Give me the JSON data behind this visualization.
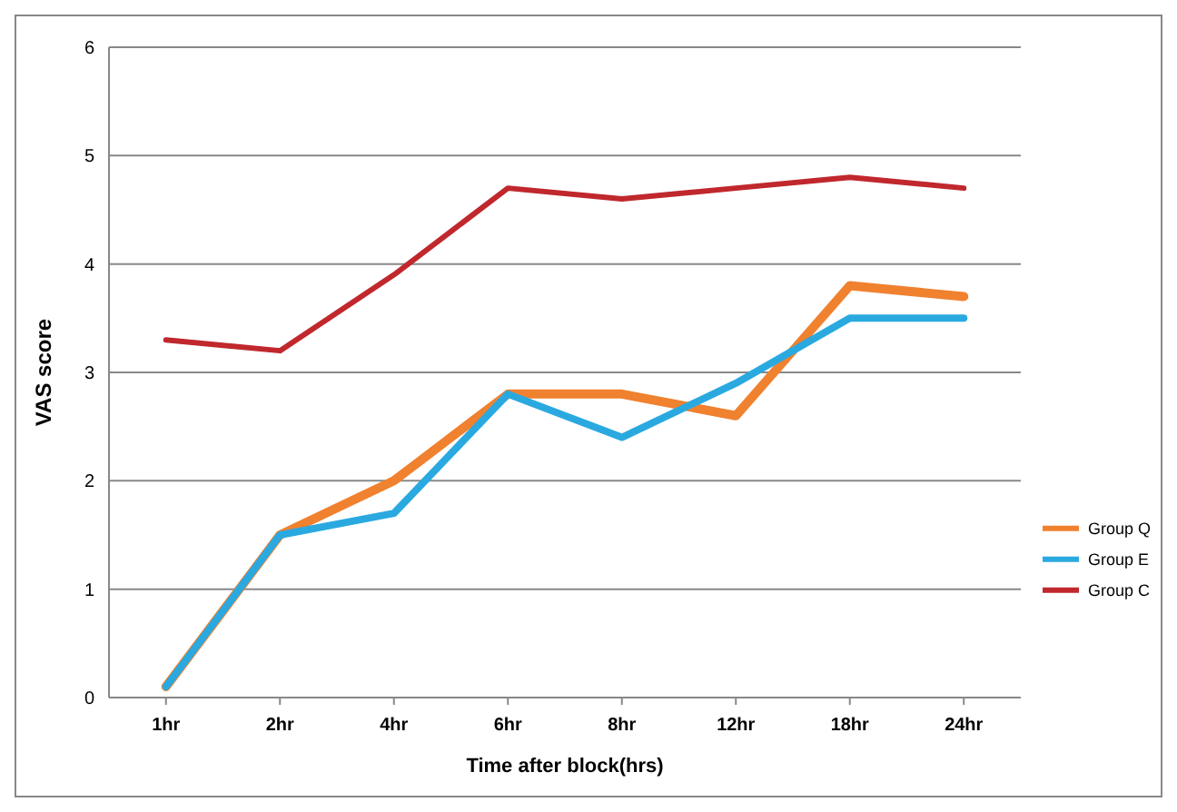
{
  "chart_data": {
    "type": "line",
    "xlabel": "Time after block(hrs)",
    "ylabel": "VAS score",
    "categories": [
      "1hr",
      "2hr",
      "4hr",
      "6hr",
      "8hr",
      "12hr",
      "18hr",
      "24hr"
    ],
    "ylim": [
      0,
      6
    ],
    "yticks": [
      0,
      1,
      2,
      3,
      4,
      5,
      6
    ],
    "grid": "y",
    "legend": "right",
    "marker": "none",
    "line_style": "solid",
    "series": [
      {
        "name": "Group Q",
        "color": "#f0812f",
        "values": [
          0.1,
          1.5,
          2.0,
          2.8,
          2.8,
          2.6,
          3.8,
          3.7
        ]
      },
      {
        "name": "Group E",
        "color": "#2aa9e0",
        "values": [
          0.1,
          1.5,
          1.7,
          2.8,
          2.4,
          2.9,
          3.5,
          3.5
        ]
      },
      {
        "name": "Group C",
        "color": "#c0282d",
        "values": [
          3.3,
          3.2,
          3.9,
          4.7,
          4.6,
          4.7,
          4.8,
          4.7
        ]
      }
    ]
  }
}
